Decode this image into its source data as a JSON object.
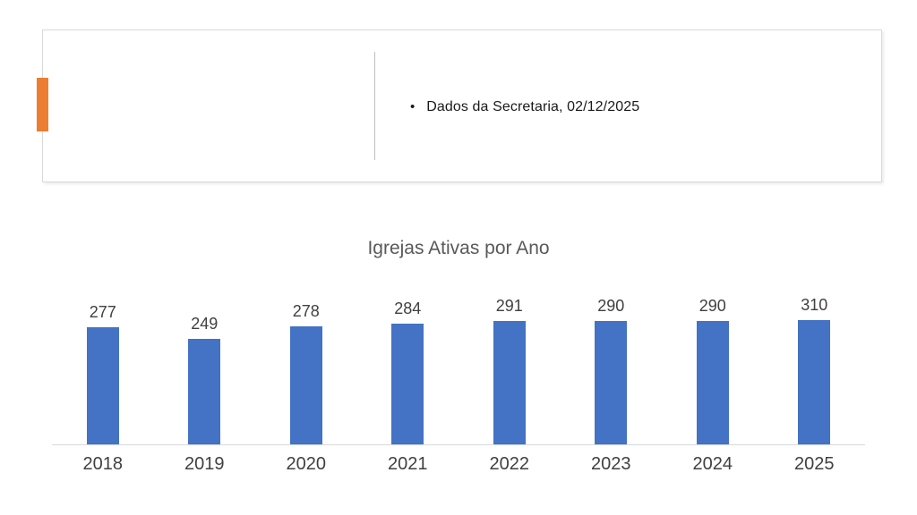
{
  "header": {
    "bullet_text": "Dados da Secretaria, 02/12/2025",
    "bullet_glyph": "•",
    "accent_color": "#ED7D31"
  },
  "chart_data": {
    "type": "bar",
    "title": "Igrejas Ativas por Ano",
    "categories": [
      "2018",
      "2019",
      "2020",
      "2021",
      "2022",
      "2023",
      "2024",
      "2025"
    ],
    "values": [
      277,
      249,
      278,
      284,
      291,
      290,
      290,
      310
    ],
    "xlabel": "",
    "ylabel": "",
    "ylim": [
      0,
      350
    ],
    "grid": false,
    "legend": false,
    "data_labels": true,
    "bar_color": "#4472C4",
    "data_label_color": "#404040",
    "axis_label_color": "#404040",
    "title_color": "#595959",
    "axis_line_color": "#D9D9D9"
  }
}
